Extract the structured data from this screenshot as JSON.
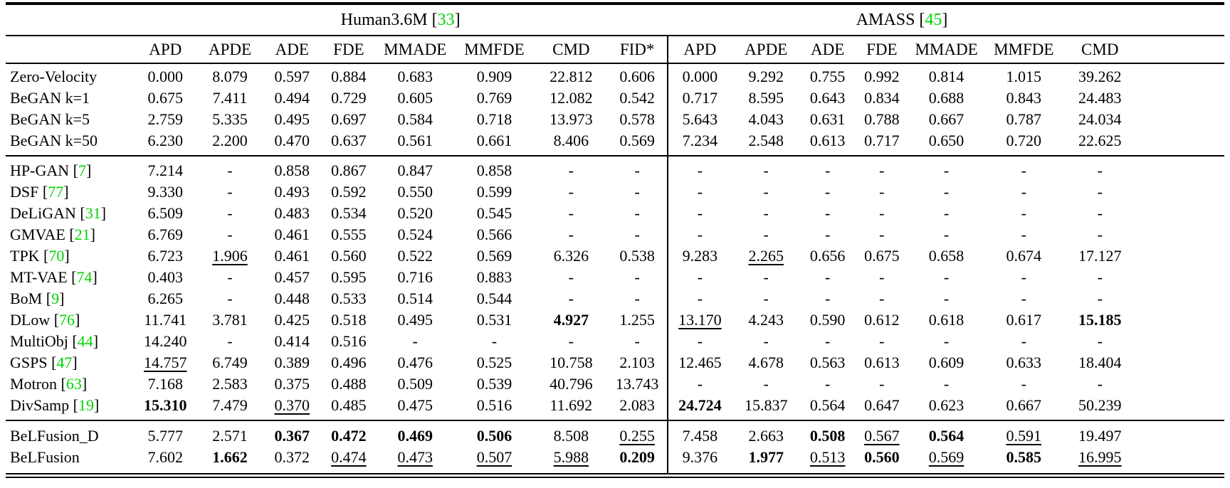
{
  "table": {
    "meta": {
      "cite_open": "[",
      "cite_close": "]",
      "citation_color": "#00d400",
      "text_color": "#000000",
      "background": "#ffffff"
    },
    "group_headers": [
      {
        "label": "Human3.6M",
        "cite": "33",
        "colspan": 8
      },
      {
        "label": "AMASS",
        "cite": "45",
        "colspan": 7
      }
    ],
    "columns": [
      "APD",
      "APDE",
      "ADE",
      "FDE",
      "MMADE",
      "MMFDE",
      "CMD",
      "FID*",
      "APD",
      "APDE",
      "ADE",
      "FDE",
      "MMADE",
      "MMFDE",
      "CMD"
    ],
    "sections": [
      {
        "rows": [
          {
            "method": "Zero-Velocity",
            "cite": null,
            "cells": [
              "0.000",
              "8.079",
              "0.597",
              "0.884",
              "0.683",
              "0.909",
              "22.812",
              "0.606",
              "0.000",
              "9.292",
              "0.755",
              "0.992",
              "0.814",
              "1.015",
              "39.262"
            ]
          },
          {
            "method": "BeGAN k=1",
            "cite": null,
            "cells": [
              "0.675",
              "7.411",
              "0.494",
              "0.729",
              "0.605",
              "0.769",
              "12.082",
              "0.542",
              "0.717",
              "8.595",
              "0.643",
              "0.834",
              "0.688",
              "0.843",
              "24.483"
            ]
          },
          {
            "method": "BeGAN k=5",
            "cite": null,
            "cells": [
              "2.759",
              "5.335",
              "0.495",
              "0.697",
              "0.584",
              "0.718",
              "13.973",
              "0.578",
              "5.643",
              "4.043",
              "0.631",
              "0.788",
              "0.667",
              "0.787",
              "24.034"
            ]
          },
          {
            "method": "BeGAN k=50",
            "cite": null,
            "cells": [
              "6.230",
              "2.200",
              "0.470",
              "0.637",
              "0.561",
              "0.661",
              "8.406",
              "0.569",
              "7.234",
              "2.548",
              "0.613",
              "0.717",
              "0.650",
              "0.720",
              "22.625"
            ]
          }
        ]
      },
      {
        "rows": [
          {
            "method": "HP-GAN",
            "cite": "7",
            "cells": [
              "7.214",
              "-",
              "0.858",
              "0.867",
              "0.847",
              "0.858",
              "-",
              "-",
              "-",
              "-",
              "-",
              "-",
              "-",
              "-",
              "-"
            ]
          },
          {
            "method": "DSF",
            "cite": "77",
            "cells": [
              "9.330",
              "-",
              "0.493",
              "0.592",
              "0.550",
              "0.599",
              "-",
              "-",
              "-",
              "-",
              "-",
              "-",
              "-",
              "-",
              "-"
            ]
          },
          {
            "method": "DeLiGAN",
            "cite": "31",
            "cells": [
              "6.509",
              "-",
              "0.483",
              "0.534",
              "0.520",
              "0.545",
              "-",
              "-",
              "-",
              "-",
              "-",
              "-",
              "-",
              "-",
              "-"
            ]
          },
          {
            "method": "GMVAE",
            "cite": "21",
            "cells": [
              "6.769",
              "-",
              "0.461",
              "0.555",
              "0.524",
              "0.566",
              "-",
              "-",
              "-",
              "-",
              "-",
              "-",
              "-",
              "-",
              "-"
            ]
          },
          {
            "method": "TPK",
            "cite": "70",
            "cells": [
              "6.723",
              {
                "v": "1.906",
                "s": "u"
              },
              "0.461",
              "0.560",
              "0.522",
              "0.569",
              "6.326",
              "0.538",
              "9.283",
              {
                "v": "2.265",
                "s": "u"
              },
              "0.656",
              "0.675",
              "0.658",
              "0.674",
              "17.127"
            ]
          },
          {
            "method": "MT-VAE",
            "cite": "74",
            "cells": [
              "0.403",
              "-",
              "0.457",
              "0.595",
              "0.716",
              "0.883",
              "-",
              "-",
              "-",
              "-",
              "-",
              "-",
              "-",
              "-",
              "-"
            ]
          },
          {
            "method": "BoM",
            "cite": "9",
            "cells": [
              "6.265",
              "-",
              "0.448",
              "0.533",
              "0.514",
              "0.544",
              "-",
              "-",
              "-",
              "-",
              "-",
              "-",
              "-",
              "-",
              "-"
            ]
          },
          {
            "method": "DLow",
            "cite": "76",
            "cells": [
              "11.741",
              "3.781",
              "0.425",
              "0.518",
              "0.495",
              "0.531",
              {
                "v": "4.927",
                "s": "b"
              },
              "1.255",
              {
                "v": "13.170",
                "s": "u"
              },
              "4.243",
              "0.590",
              "0.612",
              "0.618",
              "0.617",
              {
                "v": "15.185",
                "s": "b"
              }
            ]
          },
          {
            "method": "MultiObj",
            "cite": "44",
            "cells": [
              "14.240",
              "-",
              "0.414",
              "0.516",
              "-",
              "-",
              "-",
              "-",
              "-",
              "-",
              "-",
              "-",
              "-",
              "-",
              "-"
            ]
          },
          {
            "method": "GSPS",
            "cite": "47",
            "cells": [
              {
                "v": "14.757",
                "s": "u"
              },
              "6.749",
              "0.389",
              "0.496",
              "0.476",
              "0.525",
              "10.758",
              "2.103",
              "12.465",
              "4.678",
              "0.563",
              "0.613",
              "0.609",
              "0.633",
              "18.404"
            ]
          },
          {
            "method": "Motron",
            "cite": "63",
            "cells": [
              "7.168",
              "2.583",
              "0.375",
              "0.488",
              "0.509",
              "0.539",
              "40.796",
              "13.743",
              "-",
              "-",
              "-",
              "-",
              "-",
              "-",
              "-"
            ]
          },
          {
            "method": "DivSamp",
            "cite": "19",
            "cells": [
              {
                "v": "15.310",
                "s": "b"
              },
              "7.479",
              {
                "v": "0.370",
                "s": "u"
              },
              "0.485",
              "0.475",
              "0.516",
              "11.692",
              "2.083",
              {
                "v": "24.724",
                "s": "b"
              },
              "15.837",
              "0.564",
              "0.647",
              "0.623",
              "0.667",
              "50.239"
            ]
          }
        ]
      },
      {
        "rows": [
          {
            "method": "BeLFusion_D",
            "cite": null,
            "cells": [
              "5.777",
              "2.571",
              {
                "v": "0.367",
                "s": "b"
              },
              {
                "v": "0.472",
                "s": "b"
              },
              {
                "v": "0.469",
                "s": "b"
              },
              {
                "v": "0.506",
                "s": "b"
              },
              "8.508",
              {
                "v": "0.255",
                "s": "u"
              },
              "7.458",
              "2.663",
              {
                "v": "0.508",
                "s": "b"
              },
              {
                "v": "0.567",
                "s": "u"
              },
              {
                "v": "0.564",
                "s": "b"
              },
              {
                "v": "0.591",
                "s": "u"
              },
              "19.497"
            ]
          },
          {
            "method": "BeLFusion",
            "cite": null,
            "cells": [
              "7.602",
              {
                "v": "1.662",
                "s": "b"
              },
              "0.372",
              {
                "v": "0.474",
                "s": "u"
              },
              {
                "v": "0.473",
                "s": "u"
              },
              {
                "v": "0.507",
                "s": "u"
              },
              {
                "v": "5.988",
                "s": "u"
              },
              {
                "v": "0.209",
                "s": "b"
              },
              "9.376",
              {
                "v": "1.977",
                "s": "b"
              },
              {
                "v": "0.513",
                "s": "u"
              },
              {
                "v": "0.560",
                "s": "b"
              },
              {
                "v": "0.569",
                "s": "u"
              },
              {
                "v": "0.585",
                "s": "b"
              },
              {
                "v": "16.995",
                "s": "u"
              }
            ]
          }
        ]
      }
    ]
  }
}
